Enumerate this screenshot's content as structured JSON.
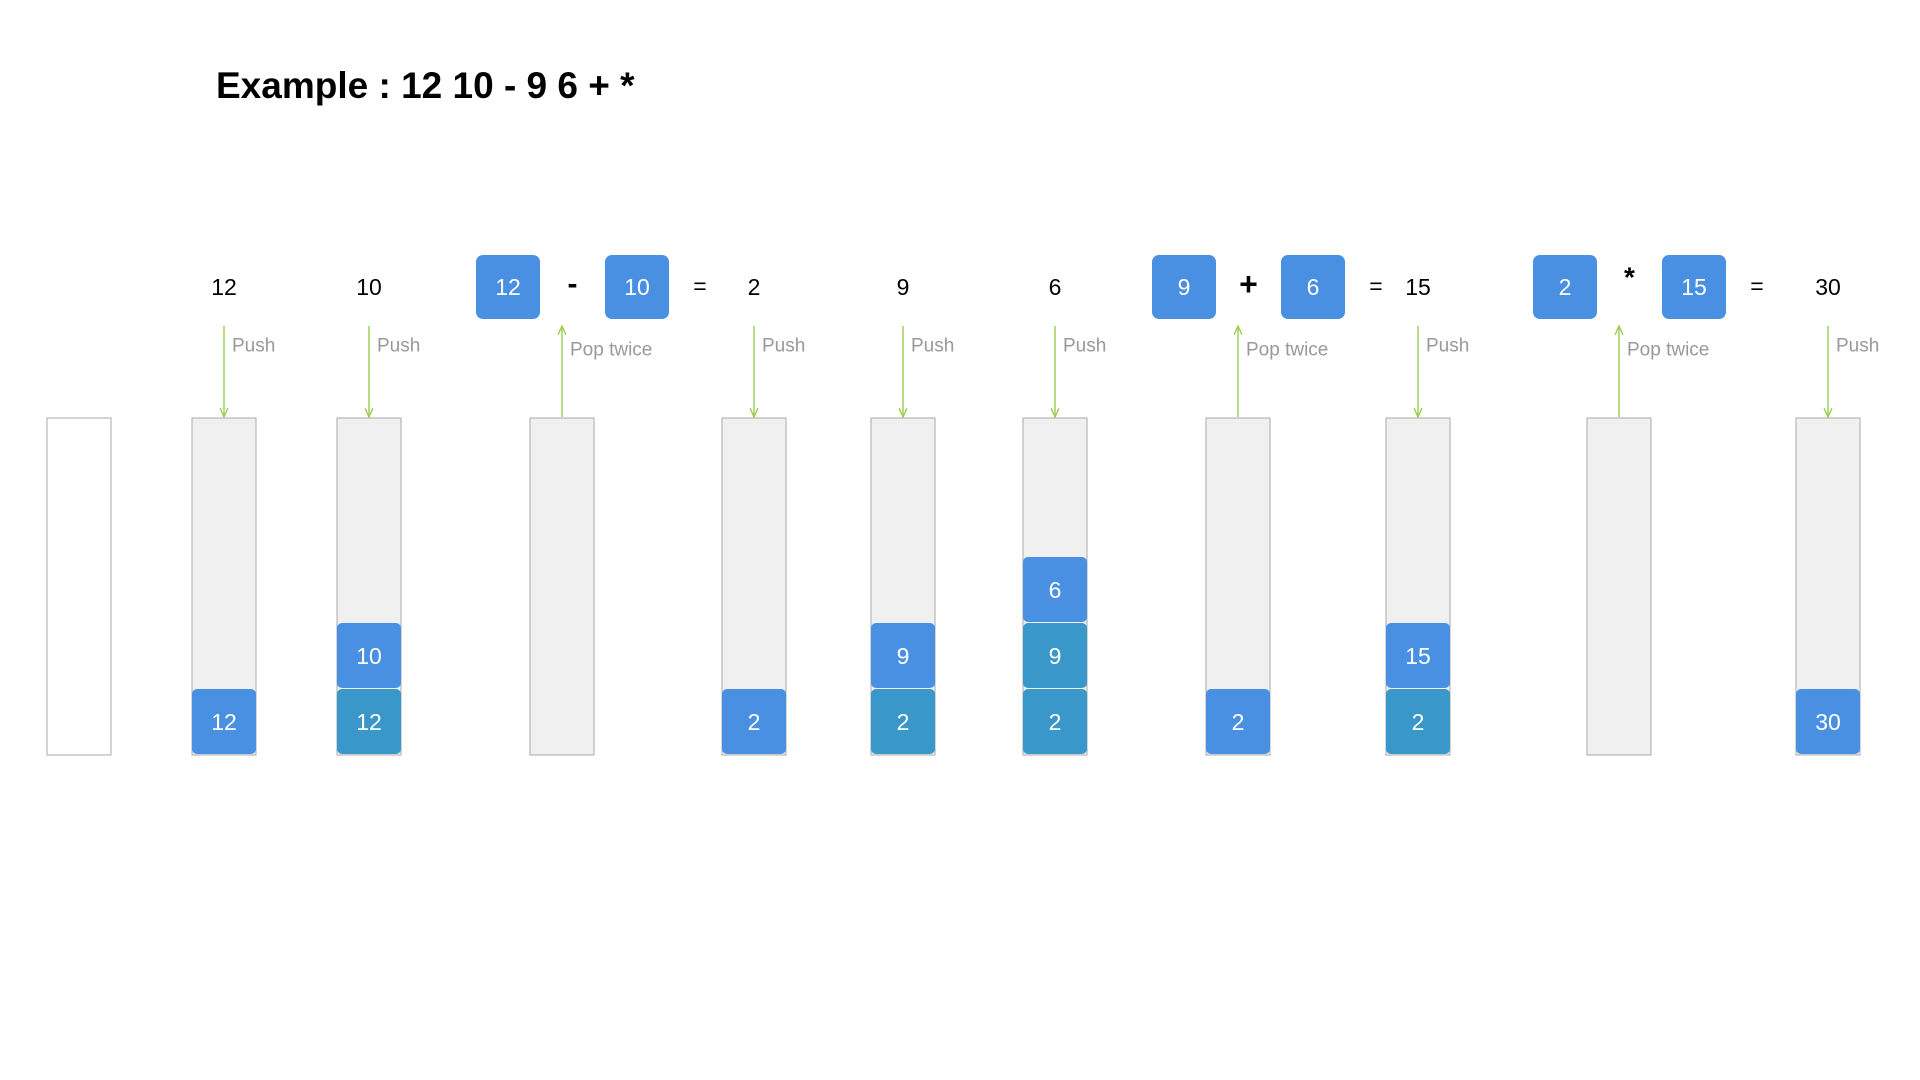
{
  "title": "Example : 12 10 - 9 6 + *",
  "colors": {
    "stack_fill": "#f0f0f0",
    "stack_border": "#aaaaaa",
    "empty_fill": "#ffffff",
    "block_new": "#4a90e2",
    "block_old": "#3a97c9",
    "arrow": "#9acd4e",
    "action_text": "#999999",
    "value_text": "#000000"
  },
  "stacks": [
    {
      "state": "empty",
      "items": []
    },
    {
      "items": [
        {
          "value": "12",
          "tone": "new"
        }
      ]
    },
    {
      "items": [
        {
          "value": "12",
          "tone": "old"
        },
        {
          "value": "10",
          "tone": "new"
        }
      ]
    },
    {
      "items": []
    },
    {
      "items": [
        {
          "value": "2",
          "tone": "new"
        }
      ]
    },
    {
      "items": [
        {
          "value": "2",
          "tone": "old"
        },
        {
          "value": "9",
          "tone": "new"
        }
      ]
    },
    {
      "items": [
        {
          "value": "2",
          "tone": "old"
        },
        {
          "value": "9",
          "tone": "old"
        },
        {
          "value": "6",
          "tone": "new"
        }
      ]
    },
    {
      "items": [
        {
          "value": "2",
          "tone": "new"
        }
      ]
    },
    {
      "items": [
        {
          "value": "2",
          "tone": "old"
        },
        {
          "value": "15",
          "tone": "new"
        }
      ]
    },
    {
      "items": []
    },
    {
      "items": [
        {
          "value": "30",
          "tone": "new"
        }
      ]
    }
  ],
  "steps": [
    {
      "stack": 1,
      "action": "push",
      "label": "Push",
      "value": "12"
    },
    {
      "stack": 2,
      "action": "push",
      "label": "Push",
      "value": "10"
    },
    {
      "stack": 3,
      "action": "pop",
      "label": "Pop twice",
      "left": "12",
      "operator": "-",
      "right": "10",
      "equals": "=",
      "result": "2"
    },
    {
      "stack": 4,
      "action": "push",
      "label": "Push",
      "value": "2"
    },
    {
      "stack": 5,
      "action": "push",
      "label": "Push",
      "value": "9"
    },
    {
      "stack": 6,
      "action": "push",
      "label": "Push",
      "value": "6"
    },
    {
      "stack": 7,
      "action": "pop",
      "label": "Pop twice",
      "left": "9",
      "operator": "+",
      "right": "6",
      "equals": "=",
      "result": "15"
    },
    {
      "stack": 8,
      "action": "push",
      "label": "Push",
      "value": "15"
    },
    {
      "stack": 9,
      "action": "pop",
      "label": "Pop twice",
      "left": "2",
      "operator": "*",
      "right": "15",
      "equals": "=",
      "result": "30"
    },
    {
      "stack": 10,
      "action": "push",
      "label": "Push",
      "value": "30"
    }
  ]
}
